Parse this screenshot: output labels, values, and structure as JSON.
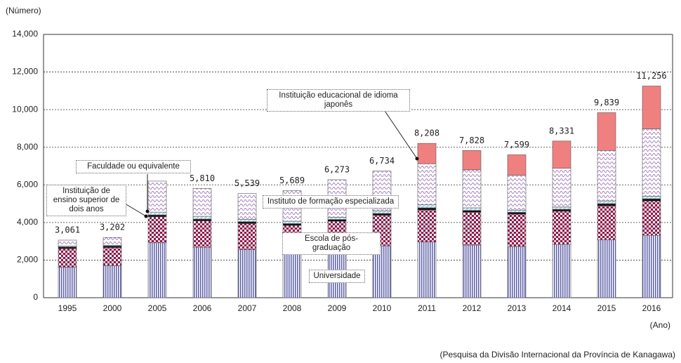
{
  "chart_data": {
    "type": "stacked-bar",
    "y_label": "(Número)",
    "x_label": "(Ano)",
    "source": "(Pesquisa da Divisão Internacional da Província de Kanagawa)",
    "categories": [
      "1995",
      "2000",
      "2005",
      "2006",
      "2007",
      "2008",
      "2009",
      "2010",
      "2011",
      "2012",
      "2013",
      "2014",
      "2015",
      "2016"
    ],
    "series": [
      {
        "name": "Universidade",
        "color": "#5b5ea6",
        "pattern": "vertical-lines",
        "values": [
          1620,
          1700,
          2920,
          2680,
          2560,
          2480,
          2640,
          2760,
          2960,
          2800,
          2720,
          2840,
          3080,
          3320
        ]
      },
      {
        "name": "Escola de pós-graduação",
        "color": "#8b1a4a",
        "pattern": "checker",
        "values": [
          990,
          960,
          1380,
          1400,
          1380,
          1360,
          1420,
          1620,
          1700,
          1740,
          1720,
          1760,
          1800,
          1820
        ]
      },
      {
        "name": "Instituição de ensino superior de dois anos",
        "color": "#111111",
        "pattern": "solid",
        "values": [
          90,
          90,
          100,
          100,
          100,
          100,
          100,
          100,
          120,
          100,
          100,
          100,
          120,
          120
        ]
      },
      {
        "name": "Faculdade ou equivalente",
        "color": "#6ab0d8",
        "pattern": "diagonal",
        "values": [
          40,
          40,
          150,
          150,
          130,
          130,
          120,
          140,
          160,
          140,
          120,
          120,
          150,
          140
        ]
      },
      {
        "name": "Instituto de formação especializada",
        "color": "#8a5aa8",
        "pattern": "wave",
        "values": [
          321,
          412,
          1650,
          1480,
          1369,
          1619,
          1993,
          2114,
          2180,
          2020,
          1850,
          2060,
          2680,
          3580
        ]
      },
      {
        "name": "Instituição educacional de idioma japonês",
        "color": "#f08080",
        "pattern": "solid",
        "values": [
          0,
          0,
          0,
          0,
          0,
          0,
          0,
          0,
          1088,
          1028,
          1089,
          1451,
          2009,
          2276
        ]
      }
    ],
    "totals": [
      3061,
      3202,
      null,
      5810,
      5539,
      5689,
      6273,
      6734,
      8208,
      7828,
      7599,
      8331,
      9839,
      11256
    ],
    "total_labels": [
      "3,061",
      "3,202",
      null,
      "5,810",
      "5,539",
      "5,689",
      "6,273",
      "6,734",
      "8,208",
      "7,828",
      "7,599",
      "8,331",
      "9,839",
      "11,256"
    ],
    "ylim": [
      0,
      14000
    ],
    "yticks": [
      0,
      {
        "value": 2000,
        "label": "2,000"
      },
      {
        "value": 4000,
        "label": "4,000"
      },
      {
        "value": 6000,
        "label": "6,000"
      },
      {
        "value": 8000,
        "label": "8,000"
      },
      {
        "value": 10000,
        "label": "10,000"
      },
      {
        "value": 12000,
        "label": "12,000"
      },
      {
        "value": 14000,
        "label": "14,000"
      }
    ],
    "grid": true
  }
}
